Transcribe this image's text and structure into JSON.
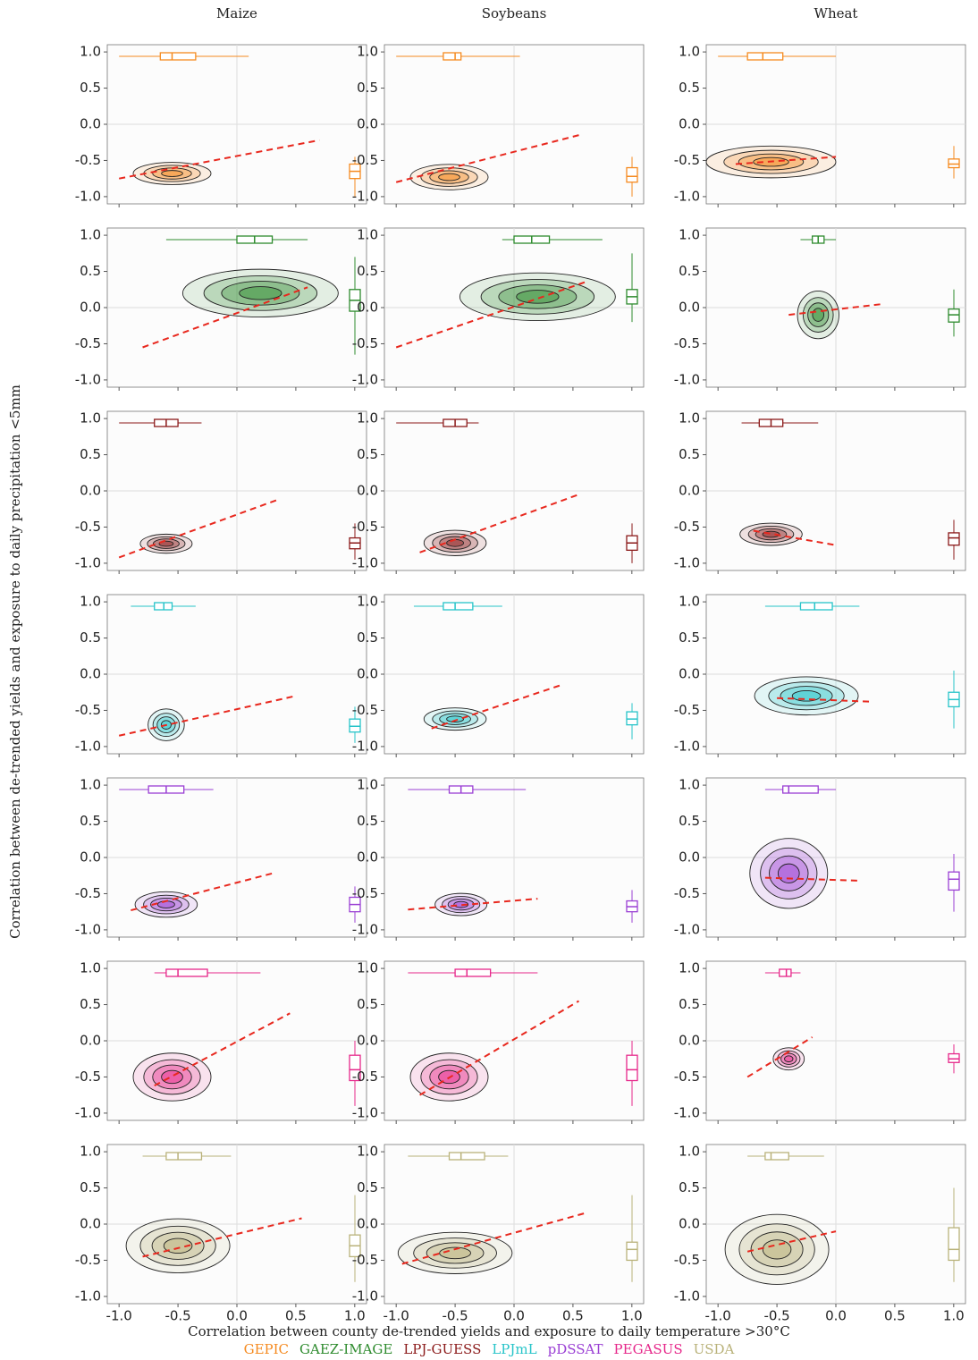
{
  "chart_data": {
    "type": "density-grid",
    "columns": [
      "Maize",
      "Soybeans",
      "Wheat"
    ],
    "x_label": "Correlation between county de-trended yields and exposure to daily temperature >30°C",
    "y_label": "Correlation between de-trended yields and exposure to daily precipitation <5mm",
    "xlim": [
      -1.1,
      1.1
    ],
    "ylim": [
      -1.1,
      1.1
    ],
    "xticks": [
      {
        "value": -1,
        "label": "-1.0"
      },
      {
        "value": -0.5,
        "label": "-0.5"
      },
      {
        "value": 0,
        "label": "0.0"
      },
      {
        "value": 0.5,
        "label": "0.5"
      },
      {
        "value": 1,
        "label": "1.0"
      }
    ],
    "yticks": [
      {
        "value": 1,
        "label": "1.0"
      },
      {
        "value": 0.5,
        "label": "0.5"
      },
      {
        "value": 0,
        "label": "0.0"
      },
      {
        "value": -0.5,
        "label": "-0.5"
      },
      {
        "value": -1,
        "label": "-1.0"
      }
    ],
    "reference_line": 0,
    "fit_color": "#e8281e",
    "series": [
      {
        "name": "GEPIC",
        "color": "#f58a1f",
        "panels": [
          {
            "fit_x": [
              -1.0,
              0.7
            ],
            "fit_y": [
              -0.75,
              -0.22
            ],
            "center": [
              -0.55,
              -0.68
            ],
            "spread": [
              0.15,
              0.07
            ],
            "box_x": [
              -1.0,
              -0.65,
              -0.55,
              -0.35,
              0.1
            ],
            "box_y": [
              -1.0,
              -0.75,
              -0.65,
              -0.55,
              -0.45
            ]
          },
          {
            "fit_x": [
              -1.0,
              0.55
            ],
            "fit_y": [
              -0.8,
              -0.15
            ],
            "center": [
              -0.55,
              -0.73
            ],
            "spread": [
              0.15,
              0.08
            ],
            "box_x": [
              -1.0,
              -0.6,
              -0.5,
              -0.45,
              0.05
            ],
            "box_y": [
              -1.0,
              -0.8,
              -0.72,
              -0.6,
              -0.45
            ]
          },
          {
            "fit_x": [
              -0.85,
              0.0
            ],
            "fit_y": [
              -0.55,
              -0.45
            ],
            "center": [
              -0.55,
              -0.52
            ],
            "spread": [
              0.25,
              0.1
            ],
            "box_x": [
              -1.0,
              -0.75,
              -0.62,
              -0.45,
              0.0
            ],
            "box_y": [
              -0.75,
              -0.6,
              -0.55,
              -0.48,
              -0.3
            ]
          }
        ]
      },
      {
        "name": "GAEZ-IMAGE",
        "color": "#2e8b2e",
        "panels": [
          {
            "fit_x": [
              -0.8,
              0.6
            ],
            "fit_y": [
              -0.55,
              0.28
            ],
            "center": [
              0.2,
              0.2
            ],
            "spread": [
              0.3,
              0.15
            ],
            "box_x": [
              -0.6,
              0.0,
              0.15,
              0.3,
              0.6
            ],
            "box_y": [
              -0.65,
              -0.05,
              0.1,
              0.25,
              0.7
            ]
          },
          {
            "fit_x": [
              -1.0,
              0.6
            ],
            "fit_y": [
              -0.55,
              0.35
            ],
            "center": [
              0.2,
              0.15
            ],
            "spread": [
              0.3,
              0.15
            ],
            "box_x": [
              -0.1,
              0.0,
              0.15,
              0.3,
              0.75
            ],
            "box_y": [
              -0.2,
              0.05,
              0.15,
              0.25,
              0.75
            ]
          },
          {
            "fit_x": [
              -0.4,
              0.4
            ],
            "fit_y": [
              -0.1,
              0.05
            ],
            "center": [
              -0.15,
              -0.1
            ],
            "spread": [
              0.08,
              0.15
            ],
            "box_x": [
              -0.3,
              -0.2,
              -0.15,
              -0.1,
              0.0
            ],
            "box_y": [
              -0.4,
              -0.2,
              -0.1,
              -0.02,
              0.25
            ]
          }
        ]
      },
      {
        "name": "LPJ-GUESS",
        "color": "#8b1a1a",
        "panels": [
          {
            "fit_x": [
              -1.0,
              0.35
            ],
            "fit_y": [
              -0.92,
              -0.12
            ],
            "center": [
              -0.6,
              -0.73
            ],
            "spread": [
              0.1,
              0.06
            ],
            "box_x": [
              -1.0,
              -0.7,
              -0.6,
              -0.5,
              -0.3
            ],
            "box_y": [
              -0.95,
              -0.8,
              -0.72,
              -0.65,
              -0.45
            ]
          },
          {
            "fit_x": [
              -0.8,
              0.55
            ],
            "fit_y": [
              -0.85,
              -0.05
            ],
            "center": [
              -0.5,
              -0.72
            ],
            "spread": [
              0.12,
              0.08
            ],
            "box_x": [
              -1.0,
              -0.6,
              -0.5,
              -0.4,
              -0.3
            ],
            "box_y": [
              -1.0,
              -0.82,
              -0.72,
              -0.62,
              -0.45
            ]
          },
          {
            "fit_x": [
              -0.7,
              0.0
            ],
            "fit_y": [
              -0.55,
              -0.75
            ],
            "center": [
              -0.55,
              -0.6
            ],
            "spread": [
              0.12,
              0.07
            ],
            "box_x": [
              -0.8,
              -0.65,
              -0.55,
              -0.45,
              -0.15
            ],
            "box_y": [
              -0.95,
              -0.75,
              -0.65,
              -0.58,
              -0.4
            ]
          }
        ]
      },
      {
        "name": "LPJmL",
        "color": "#27c4c9",
        "panels": [
          {
            "fit_x": [
              -1.0,
              0.5
            ],
            "fit_y": [
              -0.85,
              -0.3
            ],
            "center": [
              -0.6,
              -0.7
            ],
            "spread": [
              0.07,
              0.1
            ],
            "box_x": [
              -0.9,
              -0.7,
              -0.62,
              -0.55,
              -0.35
            ],
            "box_y": [
              -0.95,
              -0.8,
              -0.72,
              -0.62,
              -0.45
            ]
          },
          {
            "fit_x": [
              -0.7,
              0.4
            ],
            "fit_y": [
              -0.75,
              -0.15
            ],
            "center": [
              -0.5,
              -0.62
            ],
            "spread": [
              0.12,
              0.07
            ],
            "box_x": [
              -0.85,
              -0.6,
              -0.5,
              -0.35,
              -0.1
            ],
            "box_y": [
              -0.9,
              -0.7,
              -0.62,
              -0.52,
              -0.4
            ]
          },
          {
            "fit_x": [
              -0.5,
              0.3
            ],
            "fit_y": [
              -0.33,
              -0.38
            ],
            "center": [
              -0.25,
              -0.3
            ],
            "spread": [
              0.2,
              0.12
            ],
            "box_x": [
              -0.6,
              -0.3,
              -0.18,
              -0.03,
              0.2
            ],
            "box_y": [
              -0.75,
              -0.45,
              -0.35,
              -0.25,
              0.05
            ]
          }
        ]
      },
      {
        "name": "pDSSAT",
        "color": "#9a3fd4",
        "panels": [
          {
            "fit_x": [
              -0.9,
              0.3
            ],
            "fit_y": [
              -0.73,
              -0.22
            ],
            "center": [
              -0.6,
              -0.65
            ],
            "spread": [
              0.12,
              0.08
            ],
            "box_x": [
              -1.0,
              -0.75,
              -0.6,
              -0.45,
              -0.2
            ],
            "box_y": [
              -0.9,
              -0.75,
              -0.65,
              -0.55,
              -0.4
            ]
          },
          {
            "fit_x": [
              -0.9,
              0.2
            ],
            "fit_y": [
              -0.72,
              -0.57
            ],
            "center": [
              -0.45,
              -0.65
            ],
            "spread": [
              0.1,
              0.07
            ],
            "box_x": [
              -0.9,
              -0.55,
              -0.45,
              -0.35,
              0.1
            ],
            "box_y": [
              -0.9,
              -0.75,
              -0.68,
              -0.6,
              -0.45
            ]
          },
          {
            "fit_x": [
              -0.6,
              0.2
            ],
            "fit_y": [
              -0.28,
              -0.32
            ],
            "center": [
              -0.4,
              -0.22
            ],
            "spread": [
              0.15,
              0.22
            ],
            "box_x": [
              -0.6,
              -0.45,
              -0.4,
              -0.15,
              0.0
            ],
            "box_y": [
              -0.75,
              -0.45,
              -0.3,
              -0.2,
              0.05
            ]
          }
        ]
      },
      {
        "name": "PEGASUS",
        "color": "#e6278a",
        "panels": [
          {
            "fit_x": [
              -0.7,
              0.45
            ],
            "fit_y": [
              -0.62,
              0.38
            ],
            "center": [
              -0.55,
              -0.5
            ],
            "spread": [
              0.15,
              0.15
            ],
            "box_x": [
              -0.7,
              -0.6,
              -0.5,
              -0.25,
              0.2
            ],
            "box_y": [
              -0.9,
              -0.55,
              -0.4,
              -0.2,
              0.0
            ]
          },
          {
            "fit_x": [
              -0.8,
              0.55
            ],
            "fit_y": [
              -0.75,
              0.55
            ],
            "center": [
              -0.55,
              -0.5
            ],
            "spread": [
              0.15,
              0.15
            ],
            "box_x": [
              -0.9,
              -0.5,
              -0.4,
              -0.2,
              0.2
            ],
            "box_y": [
              -0.9,
              -0.55,
              -0.4,
              -0.2,
              0.0
            ]
          },
          {
            "fit_x": [
              -0.75,
              -0.2
            ],
            "fit_y": [
              -0.5,
              0.05
            ],
            "center": [
              -0.4,
              -0.25
            ],
            "spread": [
              0.06,
              0.07
            ],
            "box_x": [
              -0.6,
              -0.48,
              -0.42,
              -0.38,
              -0.3
            ],
            "box_y": [
              -0.45,
              -0.3,
              -0.25,
              -0.18,
              -0.05
            ]
          }
        ]
      },
      {
        "name": "USDA",
        "color": "#b9b27a",
        "panels": [
          {
            "fit_x": [
              -0.8,
              0.55
            ],
            "fit_y": [
              -0.45,
              0.08
            ],
            "center": [
              -0.5,
              -0.3
            ],
            "spread": [
              0.2,
              0.17
            ],
            "box_x": [
              -0.8,
              -0.6,
              -0.5,
              -0.3,
              -0.05
            ],
            "box_y": [
              -0.8,
              -0.45,
              -0.3,
              -0.15,
              0.4
            ]
          },
          {
            "fit_x": [
              -0.95,
              0.6
            ],
            "fit_y": [
              -0.55,
              0.15
            ],
            "center": [
              -0.5,
              -0.4
            ],
            "spread": [
              0.22,
              0.13
            ],
            "box_x": [
              -0.9,
              -0.55,
              -0.45,
              -0.25,
              -0.05
            ],
            "box_y": [
              -0.8,
              -0.5,
              -0.35,
              -0.25,
              0.4
            ]
          },
          {
            "fit_x": [
              -0.75,
              0.0
            ],
            "fit_y": [
              -0.38,
              -0.1
            ],
            "center": [
              -0.5,
              -0.35
            ],
            "spread": [
              0.2,
              0.22
            ],
            "box_x": [
              -0.75,
              -0.6,
              -0.55,
              -0.4,
              -0.1
            ],
            "box_y": [
              -0.8,
              -0.5,
              -0.35,
              -0.05,
              0.5
            ]
          }
        ]
      }
    ]
  }
}
